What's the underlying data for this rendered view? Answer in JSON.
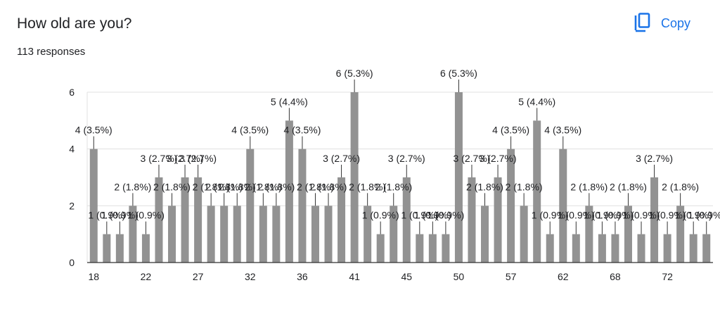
{
  "header": {
    "title": "How old are you?",
    "responses": "113 responses",
    "copy_label": "Copy"
  },
  "colors": {
    "bar": "#929292",
    "accent": "#1a73e8",
    "grid": "#e0e0e0",
    "axis": "#333333"
  },
  "chart_data": {
    "type": "bar",
    "title": "",
    "xlabel": "",
    "ylabel": "",
    "ylim": [
      0,
      6
    ],
    "yticks": [
      0,
      2,
      4,
      6
    ],
    "grid": true,
    "legend": "none",
    "x_tick_labels": [
      {
        "index": 0,
        "label": "18"
      },
      {
        "index": 4,
        "label": "22"
      },
      {
        "index": 8,
        "label": "27"
      },
      {
        "index": 12,
        "label": "32"
      },
      {
        "index": 16,
        "label": "36"
      },
      {
        "index": 20,
        "label": "41"
      },
      {
        "index": 24,
        "label": "45"
      },
      {
        "index": 28,
        "label": "50"
      },
      {
        "index": 32,
        "label": "57"
      },
      {
        "index": 36,
        "label": "62"
      },
      {
        "index": 40,
        "label": "68"
      },
      {
        "index": 44,
        "label": "72"
      }
    ],
    "values": [
      4,
      1,
      1,
      2,
      1,
      3,
      2,
      3,
      3,
      2,
      2,
      2,
      4,
      2,
      2,
      5,
      4,
      2,
      2,
      3,
      6,
      2,
      1,
      2,
      3,
      1,
      1,
      1,
      6,
      3,
      2,
      3,
      4,
      2,
      5,
      1,
      4,
      1,
      2,
      1,
      1,
      2,
      1,
      3,
      1,
      2,
      1,
      1
    ],
    "data_labels": [
      "4 (3.5%)",
      "1 (0.9%)",
      "1 (0.9%)",
      "2 (1.8%)",
      "1 (0.9%)",
      "3 (2.7%)",
      "2 (1.8%)",
      "3 (2.7%)",
      "3 (2.7%)",
      "2 (1.8%)",
      "2 (1.8%)",
      "2 (1.8%)",
      "4 (3.5%)",
      "2 (1.8%)",
      "2 (1.8%)",
      "5 (4.4%)",
      "4 (3.5%)",
      "2 (1.8%)",
      "2 (1.8%)",
      "3 (2.7%)",
      "6 (5.3%)",
      "2 (1.8%)",
      "1 (0.9%)",
      "2 (1.8%)",
      "3 (2.7%)",
      "1 (0.9%)",
      "1 (0.9%)",
      "1 (0.9%)",
      "6 (5.3%)",
      "3 (2.7%)",
      "2 (1.8%)",
      "3 (2.7%)",
      "4 (3.5%)",
      "2 (1.8%)",
      "5 (4.4%)",
      "1 (0.9%)",
      "4 (3.5%)",
      "1 (0.9%)",
      "2 (1.8%)",
      "1 (0.9%)",
      "1 (0.9%)",
      "2 (1.8%)",
      "1 (0.9%)",
      "3 (2.7%)",
      "1 (0.9%)",
      "2 (1.8%)",
      "1 (0.9%)",
      "1 (0.9%)"
    ]
  }
}
